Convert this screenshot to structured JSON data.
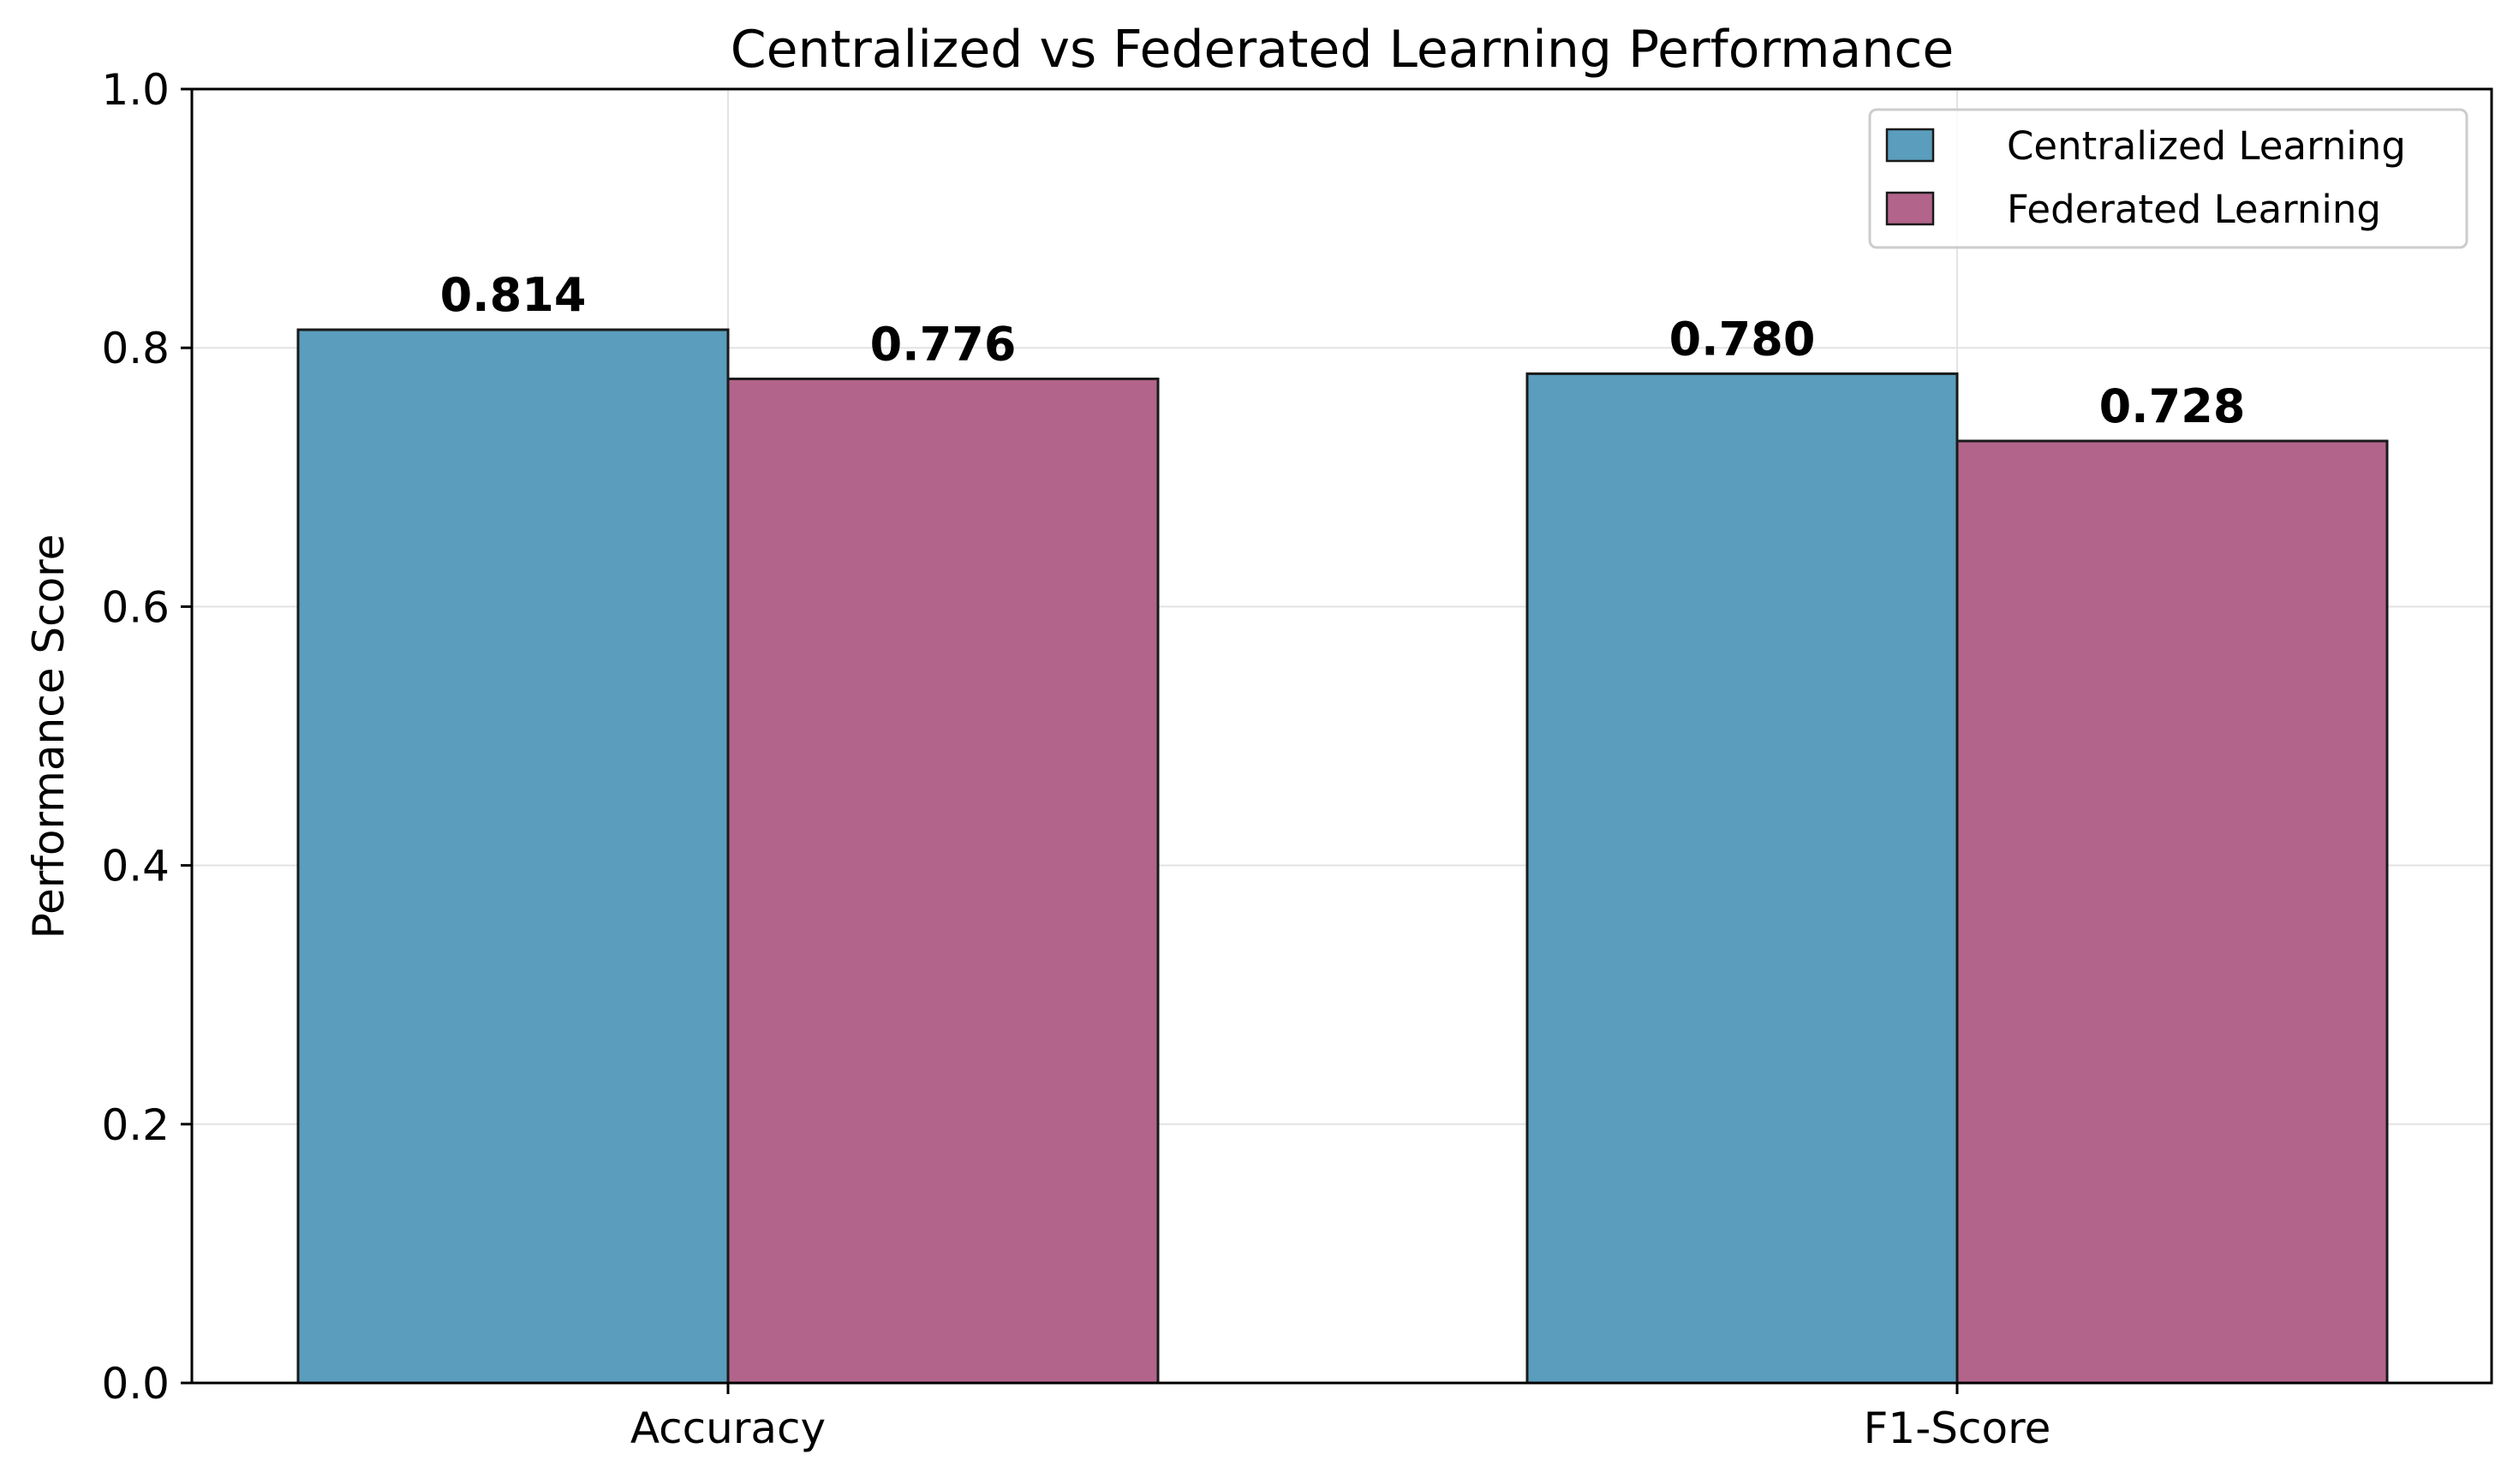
{
  "chart_data": {
    "type": "bar",
    "title": "Centralized vs Federated Learning Performance",
    "xlabel": "",
    "ylabel": "Performance Score",
    "categories": [
      "Accuracy",
      "F1-Score"
    ],
    "series": [
      {
        "name": "Centralized Learning",
        "values": [
          0.814,
          0.78
        ],
        "labels": [
          "0.814",
          "0.780"
        ],
        "color": "#5a9dbd"
      },
      {
        "name": "Federated Learning",
        "values": [
          0.776,
          0.728
        ],
        "labels": [
          "0.776",
          "0.728"
        ],
        "color": "#b3648a"
      }
    ],
    "ylim": [
      0,
      1.0
    ],
    "yticks": [
      0.0,
      0.2,
      0.4,
      0.6,
      0.8,
      1.0
    ],
    "ytick_labels": [
      "0.0",
      "0.2",
      "0.4",
      "0.6",
      "0.8",
      "1.0"
    ],
    "grid": true,
    "legend_position": "top-right"
  }
}
